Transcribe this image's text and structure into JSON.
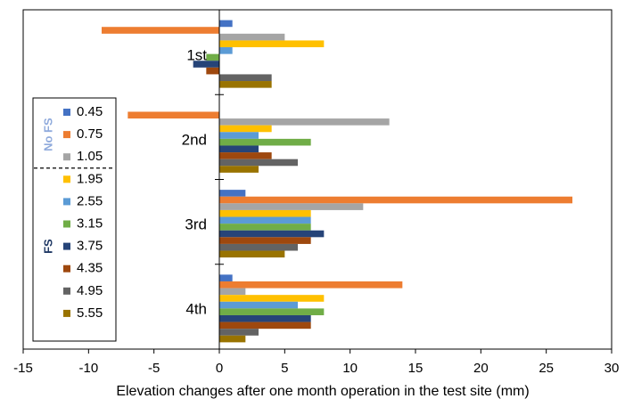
{
  "chart_data": {
    "type": "bar",
    "orientation": "horizontal",
    "xlabel": "Elevation changes after one month operation in the test site (mm)",
    "xlim": [
      -15,
      30
    ],
    "xticks": [
      -15,
      -10,
      -5,
      0,
      5,
      10,
      15,
      20,
      25,
      30
    ],
    "categories": [
      "1st",
      "2nd",
      "3rd",
      "4th"
    ],
    "legend_groups": [
      {
        "label": "No FS",
        "color": "#8FAADC",
        "series": [
          "0.45",
          "0.75",
          "1.05"
        ]
      },
      {
        "label": "FS",
        "color": "#1F3864",
        "series": [
          "1.95",
          "2.55",
          "3.15",
          "3.75",
          "4.35",
          "4.95",
          "5.55"
        ]
      }
    ],
    "series": [
      {
        "name": "0.45",
        "color": "#4472C4",
        "values": [
          1,
          null,
          2,
          1
        ]
      },
      {
        "name": "0.75",
        "color": "#ED7D31",
        "values": [
          -9,
          -7,
          27,
          14
        ]
      },
      {
        "name": "1.05",
        "color": "#A5A5A5",
        "values": [
          5,
          13,
          11,
          2
        ]
      },
      {
        "name": "1.95",
        "color": "#FFC000",
        "values": [
          8,
          4,
          7,
          8
        ]
      },
      {
        "name": "2.55",
        "color": "#5B9BD5",
        "values": [
          1,
          3,
          7,
          6
        ]
      },
      {
        "name": "3.15",
        "color": "#70AD47",
        "values": [
          -1,
          7,
          7,
          8
        ]
      },
      {
        "name": "3.75",
        "color": "#264478",
        "values": [
          -2,
          3,
          8,
          7
        ]
      },
      {
        "name": "4.35",
        "color": "#9E480E",
        "values": [
          -1,
          4,
          7,
          7
        ]
      },
      {
        "name": "4.95",
        "color": "#636363",
        "values": [
          4,
          6,
          6,
          3
        ]
      },
      {
        "name": "5.55",
        "color": "#997300",
        "values": [
          4,
          3,
          5,
          2
        ]
      }
    ]
  }
}
